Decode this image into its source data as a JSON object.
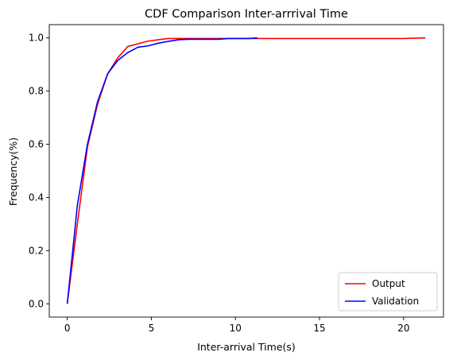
{
  "chart_data": {
    "type": "line",
    "title": "CDF Comparison Inter-arrrival Time",
    "xlabel": "Inter-arrival Time(s)",
    "ylabel": "Frequency(%)",
    "xlim": [
      -1.07,
      22.37
    ],
    "ylim": [
      -0.05,
      1.05
    ],
    "xticks": [
      0,
      5,
      10,
      15,
      20
    ],
    "yticks": [
      0.0,
      0.2,
      0.4,
      0.6,
      0.8,
      1.0
    ],
    "xtick_labels": [
      "0",
      "5",
      "10",
      "15",
      "20"
    ],
    "ytick_labels": [
      "0.0",
      "0.2",
      "0.4",
      "0.6",
      "0.8",
      "1.0"
    ],
    "grid": false,
    "legend_position": "lower-right",
    "series": [
      {
        "name": "Output",
        "color": "#ff0000",
        "x": [
          0,
          0.6,
          1.2,
          1.8,
          2.4,
          3.0,
          3.6,
          4.2,
          4.8,
          5.4,
          6.0,
          7.0,
          8.0,
          9.0,
          10.0,
          11.0,
          12.0,
          14.0,
          16.0,
          18.0,
          20.0,
          21.3
        ],
        "y": [
          0.0,
          0.3,
          0.59,
          0.75,
          0.865,
          0.925,
          0.968,
          0.978,
          0.988,
          0.993,
          0.998,
          0.998,
          0.998,
          0.998,
          0.998,
          0.998,
          0.998,
          0.998,
          0.998,
          0.998,
          0.998,
          1.0
        ]
      },
      {
        "name": "Validation",
        "color": "#0000ff",
        "x": [
          0,
          0.6,
          1.2,
          1.8,
          2.4,
          3.0,
          3.6,
          4.2,
          4.8,
          5.4,
          6.0,
          6.6,
          7.2,
          8.0,
          9.0,
          9.6,
          10.2,
          10.8,
          11.3
        ],
        "y": [
          0.0,
          0.37,
          0.6,
          0.76,
          0.865,
          0.915,
          0.945,
          0.965,
          0.97,
          0.98,
          0.987,
          0.993,
          0.995,
          0.995,
          0.995,
          0.998,
          0.998,
          0.998,
          1.0
        ]
      }
    ]
  }
}
